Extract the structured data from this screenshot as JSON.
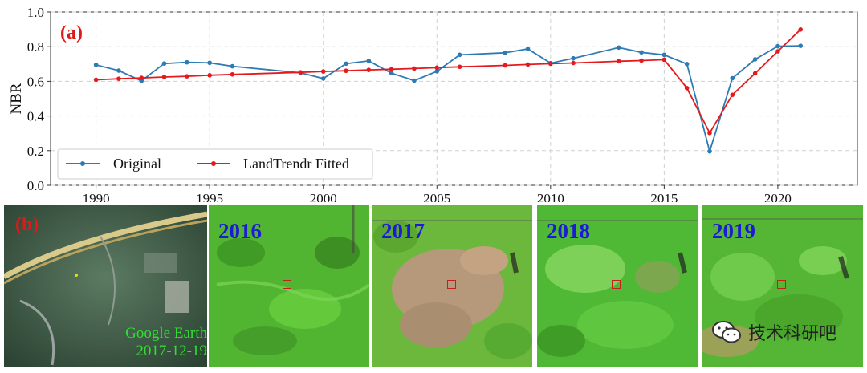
{
  "chart_data": {
    "type": "line",
    "panel_label": "(a)",
    "ylabel": "NBR",
    "xlim": [
      1988,
      2023.5
    ],
    "ylim": [
      0.0,
      1.0
    ],
    "y_ticks": [
      "0.0",
      "0.2",
      "0.4",
      "0.6",
      "0.8",
      "1.0"
    ],
    "x_ticks": [
      "1990",
      "1995",
      "2000",
      "2005",
      "2010",
      "2015",
      "2020"
    ],
    "grid": true,
    "legend_position": "lower-left",
    "series": [
      {
        "name": "Original",
        "color": "#2e7bb4",
        "x": [
          1990,
          1991,
          1992,
          1993,
          1994,
          1995,
          1996,
          1999,
          2000,
          2001,
          2002,
          2003,
          2004,
          2005,
          2006,
          2008,
          2009,
          2010,
          2011,
          2013,
          2014,
          2015,
          2016,
          2017,
          2018,
          2019,
          2020,
          2021
        ],
        "y": [
          0.695,
          0.662,
          0.603,
          0.703,
          0.71,
          0.707,
          0.687,
          0.649,
          0.616,
          0.702,
          0.718,
          0.647,
          0.604,
          0.658,
          0.753,
          0.765,
          0.787,
          0.705,
          0.733,
          0.795,
          0.767,
          0.753,
          0.7,
          0.196,
          0.618,
          0.727,
          0.803,
          0.805
        ]
      },
      {
        "name": "LandTrendr Fitted",
        "color": "#e41a1c",
        "x": [
          1990,
          1991,
          1992,
          1993,
          1994,
          1995,
          1996,
          1999,
          2000,
          2001,
          2002,
          2003,
          2004,
          2005,
          2006,
          2008,
          2009,
          2010,
          2011,
          2013,
          2014,
          2015,
          2016,
          2017,
          2018,
          2019,
          2020,
          2021
        ],
        "y": [
          0.609,
          0.615,
          0.62,
          0.625,
          0.629,
          0.635,
          0.64,
          0.652,
          0.657,
          0.661,
          0.666,
          0.67,
          0.674,
          0.679,
          0.684,
          0.692,
          0.697,
          0.702,
          0.706,
          0.716,
          0.72,
          0.725,
          0.561,
          0.302,
          0.522,
          0.646,
          0.773,
          0.899
        ]
      }
    ]
  },
  "panel_b": {
    "label": "(b)",
    "google_earth": {
      "line1": "Google Earth",
      "line2": "2017-12-19"
    },
    "tiles": [
      {
        "year": "2016",
        "tone": "healthy"
      },
      {
        "year": "2017",
        "tone": "disturbed"
      },
      {
        "year": "2018",
        "tone": "recovering"
      },
      {
        "year": "2019",
        "tone": "recovered"
      }
    ]
  },
  "watermark": {
    "text": "技术科研吧",
    "icon": "wechat-icon"
  }
}
